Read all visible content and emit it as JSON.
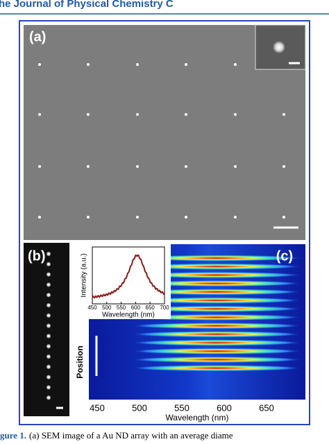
{
  "header": {
    "journal": "he Journal of Physical Chemistry C"
  },
  "figure": {
    "panels": {
      "a": {
        "label": "(a)"
      },
      "b": {
        "label": "(b)"
      },
      "c": {
        "label": "(c)",
        "x_axis_label": "Wavelength (nm)",
        "y_axis_label": "Position",
        "x_ticks": [
          "450",
          "500",
          "550",
          "600",
          "650"
        ],
        "inset": {
          "y_axis_label": "Intensity (a.u.)",
          "x_axis_label": "Wavelength (nm)",
          "x_ticks": [
            "450",
            "500",
            "550",
            "600",
            "650",
            "700"
          ]
        }
      }
    }
  },
  "caption": {
    "label": "gure 1.",
    "text": "(a) SEM image of a Au ND array with an average diame"
  }
}
